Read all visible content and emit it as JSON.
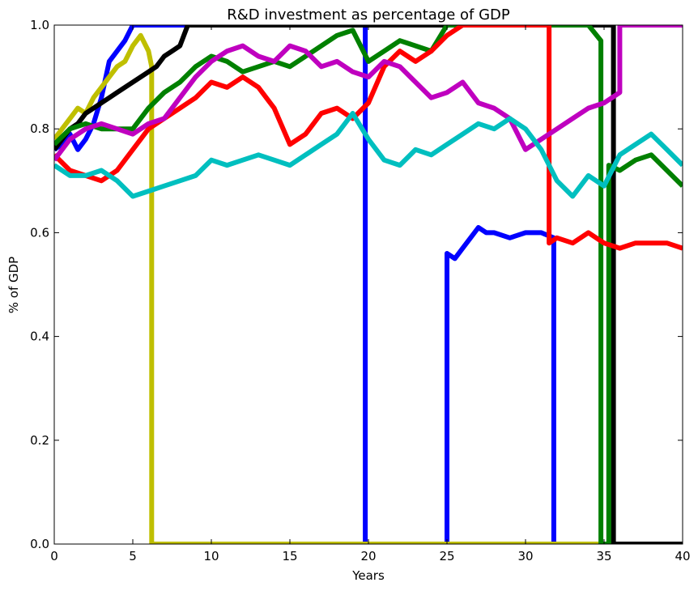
{
  "chart_data": {
    "type": "line",
    "title": "R&D investment as percentage of  GDP",
    "xlabel": "Years",
    "ylabel": "% of GDP",
    "xlim": [
      0,
      40
    ],
    "ylim": [
      0,
      1.0
    ],
    "x_ticks": [
      0,
      5,
      10,
      15,
      20,
      25,
      30,
      35,
      40
    ],
    "x_tick_labels": [
      "0",
      "5",
      "10",
      "15",
      "20",
      "25",
      "30",
      "35",
      "40"
    ],
    "y_ticks": [
      0,
      0.2,
      0.4,
      0.6,
      0.8,
      1.0
    ],
    "y_tick_labels": [
      "0.0",
      "0.2",
      "0.4",
      "0.6",
      "0.8",
      "1.0"
    ],
    "grid": false,
    "legend": "none",
    "series": [
      {
        "color": "#0000ff",
        "points": [
          [
            0,
            0.76
          ],
          [
            0.5,
            0.77
          ],
          [
            1,
            0.79
          ],
          [
            1.5,
            0.76
          ],
          [
            2,
            0.78
          ],
          [
            2.5,
            0.81
          ],
          [
            3,
            0.86
          ],
          [
            3.5,
            0.93
          ],
          [
            4,
            0.95
          ],
          [
            4.5,
            0.97
          ],
          [
            5,
            1.0
          ],
          [
            6,
            1.0
          ],
          [
            19.8,
            1.0
          ],
          [
            19.8,
            0.0
          ],
          [
            25,
            0.0
          ],
          [
            25,
            0.56
          ],
          [
            25.5,
            0.55
          ],
          [
            26,
            0.57
          ],
          [
            26.5,
            0.59
          ],
          [
            27,
            0.61
          ],
          [
            27.5,
            0.6
          ],
          [
            28,
            0.6
          ],
          [
            29,
            0.59
          ],
          [
            30,
            0.6
          ],
          [
            31,
            0.6
          ],
          [
            31.8,
            0.59
          ],
          [
            31.8,
            0.0
          ],
          [
            40,
            0.0
          ]
        ]
      },
      {
        "color": "#bfbf00",
        "points": [
          [
            0,
            0.78
          ],
          [
            0.5,
            0.8
          ],
          [
            1,
            0.82
          ],
          [
            1.5,
            0.84
          ],
          [
            2,
            0.83
          ],
          [
            2.5,
            0.86
          ],
          [
            3,
            0.88
          ],
          [
            3.5,
            0.9
          ],
          [
            4,
            0.92
          ],
          [
            4.5,
            0.93
          ],
          [
            5,
            0.96
          ],
          [
            5.5,
            0.98
          ],
          [
            6,
            0.95
          ],
          [
            6.2,
            0.92
          ],
          [
            6.2,
            0.0
          ],
          [
            40,
            0.0
          ]
        ]
      },
      {
        "color": "#000000",
        "points": [
          [
            0,
            0.76
          ],
          [
            0.5,
            0.78
          ],
          [
            1,
            0.8
          ],
          [
            1.5,
            0.81
          ],
          [
            2,
            0.83
          ],
          [
            2.5,
            0.84
          ],
          [
            3,
            0.85
          ],
          [
            3.5,
            0.86
          ],
          [
            4,
            0.87
          ],
          [
            4.5,
            0.88
          ],
          [
            5,
            0.89
          ],
          [
            5.5,
            0.9
          ],
          [
            6,
            0.91
          ],
          [
            6.5,
            0.92
          ],
          [
            7,
            0.94
          ],
          [
            7.5,
            0.95
          ],
          [
            8,
            0.96
          ],
          [
            8.5,
            1.0
          ],
          [
            35.6,
            1.0
          ],
          [
            35.6,
            0.0
          ],
          [
            40,
            0.0
          ]
        ]
      },
      {
        "color": "#008000",
        "points": [
          [
            0,
            0.77
          ],
          [
            1,
            0.8
          ],
          [
            2,
            0.81
          ],
          [
            3,
            0.8
          ],
          [
            4,
            0.8
          ],
          [
            5,
            0.8
          ],
          [
            6,
            0.84
          ],
          [
            7,
            0.87
          ],
          [
            8,
            0.89
          ],
          [
            9,
            0.92
          ],
          [
            10,
            0.94
          ],
          [
            11,
            0.93
          ],
          [
            12,
            0.91
          ],
          [
            13,
            0.92
          ],
          [
            14,
            0.93
          ],
          [
            15,
            0.92
          ],
          [
            16,
            0.94
          ],
          [
            17,
            0.96
          ],
          [
            18,
            0.98
          ],
          [
            19,
            0.99
          ],
          [
            20,
            0.93
          ],
          [
            21,
            0.95
          ],
          [
            22,
            0.97
          ],
          [
            23,
            0.96
          ],
          [
            24,
            0.95
          ],
          [
            25,
            1.0
          ],
          [
            34,
            1.0
          ],
          [
            34.8,
            0.97
          ],
          [
            34.8,
            0.0
          ],
          [
            35.3,
            0.0
          ],
          [
            35.3,
            0.73
          ],
          [
            36,
            0.72
          ],
          [
            37,
            0.74
          ],
          [
            38,
            0.75
          ],
          [
            39,
            0.72
          ],
          [
            40,
            0.69
          ]
        ]
      },
      {
        "color": "#ff0000",
        "points": [
          [
            0,
            0.75
          ],
          [
            1,
            0.72
          ],
          [
            2,
            0.71
          ],
          [
            3,
            0.7
          ],
          [
            4,
            0.72
          ],
          [
            5,
            0.76
          ],
          [
            6,
            0.8
          ],
          [
            7,
            0.82
          ],
          [
            8,
            0.84
          ],
          [
            9,
            0.86
          ],
          [
            10,
            0.89
          ],
          [
            11,
            0.88
          ],
          [
            12,
            0.9
          ],
          [
            13,
            0.88
          ],
          [
            14,
            0.84
          ],
          [
            15,
            0.77
          ],
          [
            16,
            0.79
          ],
          [
            17,
            0.83
          ],
          [
            18,
            0.84
          ],
          [
            19,
            0.82
          ],
          [
            20,
            0.85
          ],
          [
            21,
            0.92
          ],
          [
            22,
            0.95
          ],
          [
            23,
            0.93
          ],
          [
            24,
            0.95
          ],
          [
            25,
            0.98
          ],
          [
            26,
            1.0
          ],
          [
            31.5,
            1.0
          ],
          [
            31.5,
            0.58
          ],
          [
            32,
            0.59
          ],
          [
            33,
            0.58
          ],
          [
            34,
            0.6
          ],
          [
            35,
            0.58
          ],
          [
            36,
            0.57
          ],
          [
            37,
            0.58
          ],
          [
            38,
            0.58
          ],
          [
            39,
            0.58
          ],
          [
            40,
            0.57
          ]
        ]
      },
      {
        "color": "#bf00bf",
        "points": [
          [
            0,
            0.74
          ],
          [
            1,
            0.78
          ],
          [
            2,
            0.8
          ],
          [
            3,
            0.81
          ],
          [
            4,
            0.8
          ],
          [
            5,
            0.79
          ],
          [
            6,
            0.81
          ],
          [
            7,
            0.82
          ],
          [
            8,
            0.86
          ],
          [
            9,
            0.9
          ],
          [
            10,
            0.93
          ],
          [
            11,
            0.95
          ],
          [
            12,
            0.96
          ],
          [
            13,
            0.94
          ],
          [
            14,
            0.93
          ],
          [
            15,
            0.96
          ],
          [
            16,
            0.95
          ],
          [
            17,
            0.92
          ],
          [
            18,
            0.93
          ],
          [
            19,
            0.91
          ],
          [
            20,
            0.9
          ],
          [
            21,
            0.93
          ],
          [
            22,
            0.92
          ],
          [
            23,
            0.89
          ],
          [
            24,
            0.86
          ],
          [
            25,
            0.87
          ],
          [
            26,
            0.89
          ],
          [
            27,
            0.85
          ],
          [
            28,
            0.84
          ],
          [
            29,
            0.82
          ],
          [
            30,
            0.76
          ],
          [
            31,
            0.78
          ],
          [
            32,
            0.8
          ],
          [
            33,
            0.82
          ],
          [
            34,
            0.84
          ],
          [
            35,
            0.85
          ],
          [
            36,
            0.87
          ],
          [
            36,
            1.0
          ],
          [
            40,
            1.0
          ]
        ]
      },
      {
        "color": "#00bfbf",
        "points": [
          [
            0,
            0.73
          ],
          [
            1,
            0.71
          ],
          [
            2,
            0.71
          ],
          [
            3,
            0.72
          ],
          [
            4,
            0.7
          ],
          [
            5,
            0.67
          ],
          [
            6,
            0.68
          ],
          [
            7,
            0.69
          ],
          [
            8,
            0.7
          ],
          [
            9,
            0.71
          ],
          [
            10,
            0.74
          ],
          [
            11,
            0.73
          ],
          [
            12,
            0.74
          ],
          [
            13,
            0.75
          ],
          [
            14,
            0.74
          ],
          [
            15,
            0.73
          ],
          [
            16,
            0.75
          ],
          [
            17,
            0.77
          ],
          [
            18,
            0.79
          ],
          [
            19,
            0.83
          ],
          [
            20,
            0.78
          ],
          [
            21,
            0.74
          ],
          [
            22,
            0.73
          ],
          [
            23,
            0.76
          ],
          [
            24,
            0.75
          ],
          [
            25,
            0.77
          ],
          [
            26,
            0.79
          ],
          [
            27,
            0.81
          ],
          [
            28,
            0.8
          ],
          [
            29,
            0.82
          ],
          [
            30,
            0.8
          ],
          [
            31,
            0.76
          ],
          [
            32,
            0.7
          ],
          [
            33,
            0.67
          ],
          [
            34,
            0.71
          ],
          [
            35,
            0.69
          ],
          [
            36,
            0.75
          ],
          [
            37,
            0.77
          ],
          [
            38,
            0.79
          ],
          [
            39,
            0.76
          ],
          [
            40,
            0.73
          ]
        ]
      }
    ]
  }
}
